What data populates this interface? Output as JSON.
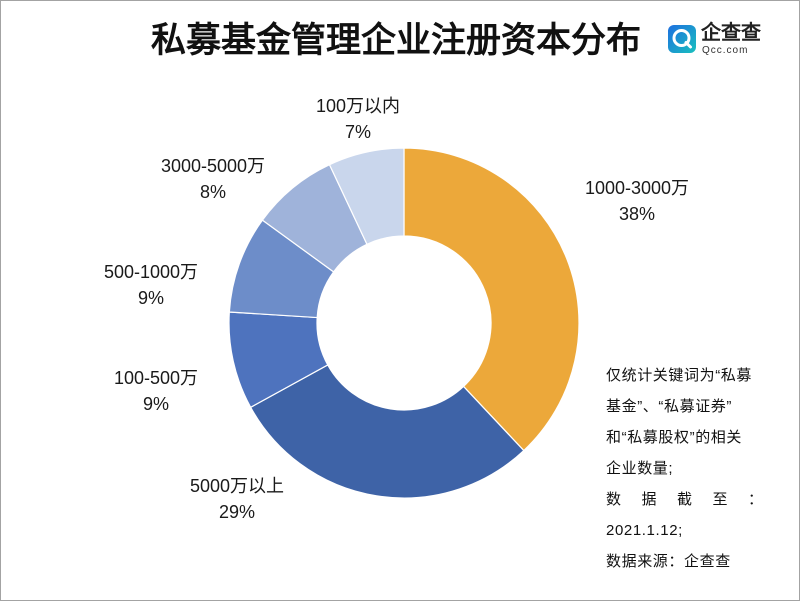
{
  "logo": {
    "icon": "qcc-logo-icon",
    "name": "企查查",
    "domain": "Qcc.com"
  },
  "chart_data": {
    "type": "pie",
    "donut": true,
    "title": "私募基金管理企业注册资本分布",
    "categories": [
      "1000-3000万",
      "5000万以上",
      "100-500万",
      "500-1000万",
      "3000-5000万",
      "100万以内"
    ],
    "values": [
      38,
      29,
      9,
      9,
      8,
      7
    ],
    "value_labels": [
      "38%",
      "29%",
      "9%",
      "9%",
      "8%",
      "7%"
    ],
    "colors": [
      "#ECA83A",
      "#3E63A7",
      "#4E73BE",
      "#6D8DC9",
      "#9FB3DA",
      "#C9D6EC"
    ],
    "legend": "none",
    "direction": "clockwise from top"
  },
  "notes": {
    "lines": [
      "仅统计关键词为“私募",
      "基金”、“私募证券”",
      "和“私募股权”的相关",
      "企业数量;",
      "数据截至：",
      "2021.1.12;",
      "数据来源：企查查"
    ]
  }
}
